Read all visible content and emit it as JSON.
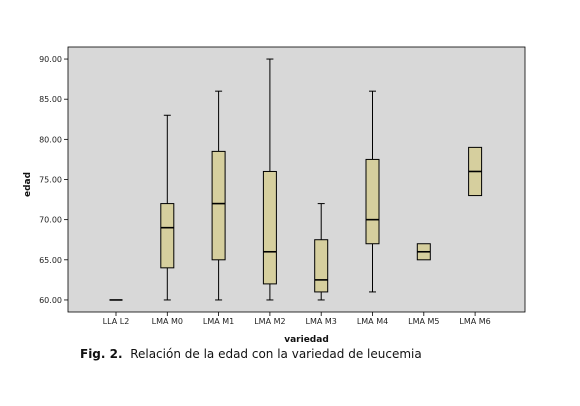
{
  "chart_data": {
    "type": "boxplot",
    "xlabel": "variedad",
    "ylabel": "edad",
    "ylim": [
      58.5,
      91.5
    ],
    "yticks": [
      60,
      65,
      70,
      75,
      80,
      85,
      90
    ],
    "ytick_labels": [
      "60.00",
      "65.00",
      "70.00",
      "75.00",
      "80.00",
      "85.00",
      "90.00"
    ],
    "grid": false,
    "categories": [
      "LLA L2",
      "LMA M0",
      "LMA M1",
      "LMA M2",
      "LMA M3",
      "LMA M4",
      "LMA M5",
      "LMA M6"
    ],
    "boxes": [
      {
        "min": 60,
        "q1": 60,
        "median": 60,
        "q3": 60,
        "max": 60
      },
      {
        "min": 60,
        "q1": 64,
        "median": 69,
        "q3": 72,
        "max": 83
      },
      {
        "min": 60,
        "q1": 65,
        "median": 72,
        "q3": 78.5,
        "max": 86
      },
      {
        "min": 60,
        "q1": 62,
        "median": 66,
        "q3": 76,
        "max": 90
      },
      {
        "min": 60,
        "q1": 61,
        "median": 62.5,
        "q3": 67.5,
        "max": 72
      },
      {
        "min": 61,
        "q1": 67,
        "median": 70,
        "q3": 77.5,
        "max": 86
      },
      {
        "min": 65,
        "q1": 65,
        "median": 66,
        "q3": 67,
        "max": 67
      },
      {
        "min": 73,
        "q1": 73,
        "median": 76,
        "q3": 79,
        "max": 79
      }
    ],
    "colors": {
      "plot_bg": "#d8d8d8",
      "box_fill": "#d6cf9e",
      "stroke": "#000000"
    }
  },
  "caption": {
    "label": "Fig. 2.",
    "text": "Relación de la edad con la variedad de leucemia"
  }
}
